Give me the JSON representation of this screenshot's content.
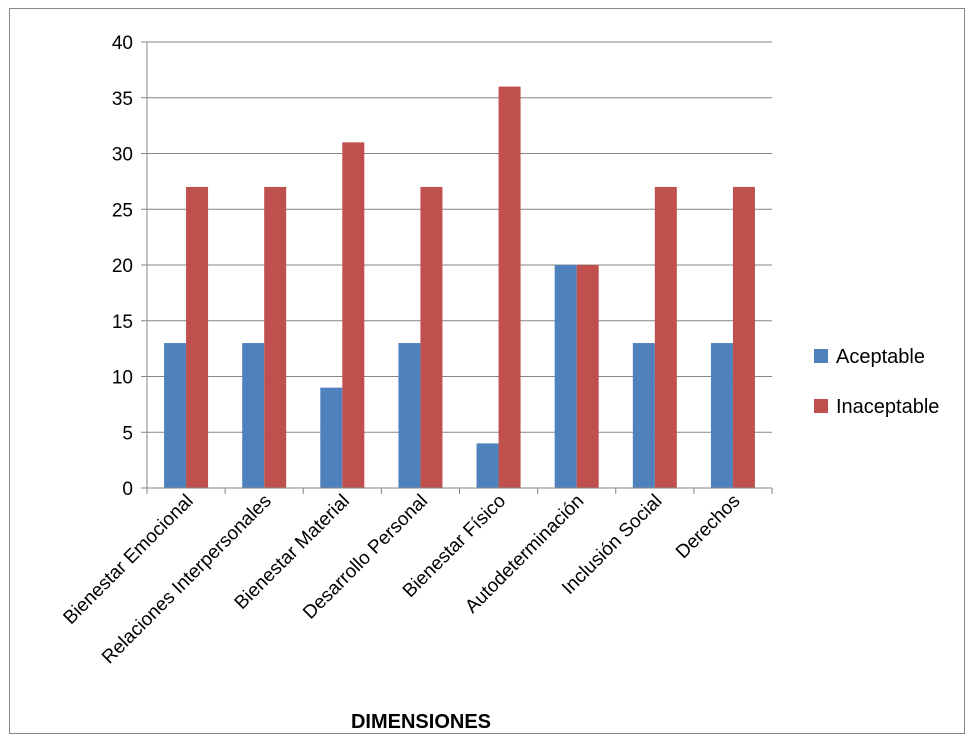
{
  "chart_data": {
    "type": "bar",
    "title": "",
    "xlabel": "DIMENSIONES",
    "ylabel": "",
    "ylim": [
      0,
      40
    ],
    "yticks": [
      0,
      5,
      10,
      15,
      20,
      25,
      30,
      35,
      40
    ],
    "grid": true,
    "legend_position": "right",
    "categories": [
      "Bienestar Emocional",
      "Relaciones Interpersonales",
      "Bienestar Material",
      "Desarrollo Personal",
      "Bienestar Físico",
      "Autodeterminación",
      "Inclusión Social",
      "Derechos"
    ],
    "series": [
      {
        "name": "Aceptable",
        "color": "#4f81bd",
        "values": [
          13,
          13,
          9,
          13,
          4,
          20,
          13,
          13
        ]
      },
      {
        "name": "Inaceptable",
        "color": "#c0504d",
        "values": [
          27,
          27,
          31,
          27,
          36,
          20,
          27,
          27
        ]
      }
    ]
  }
}
